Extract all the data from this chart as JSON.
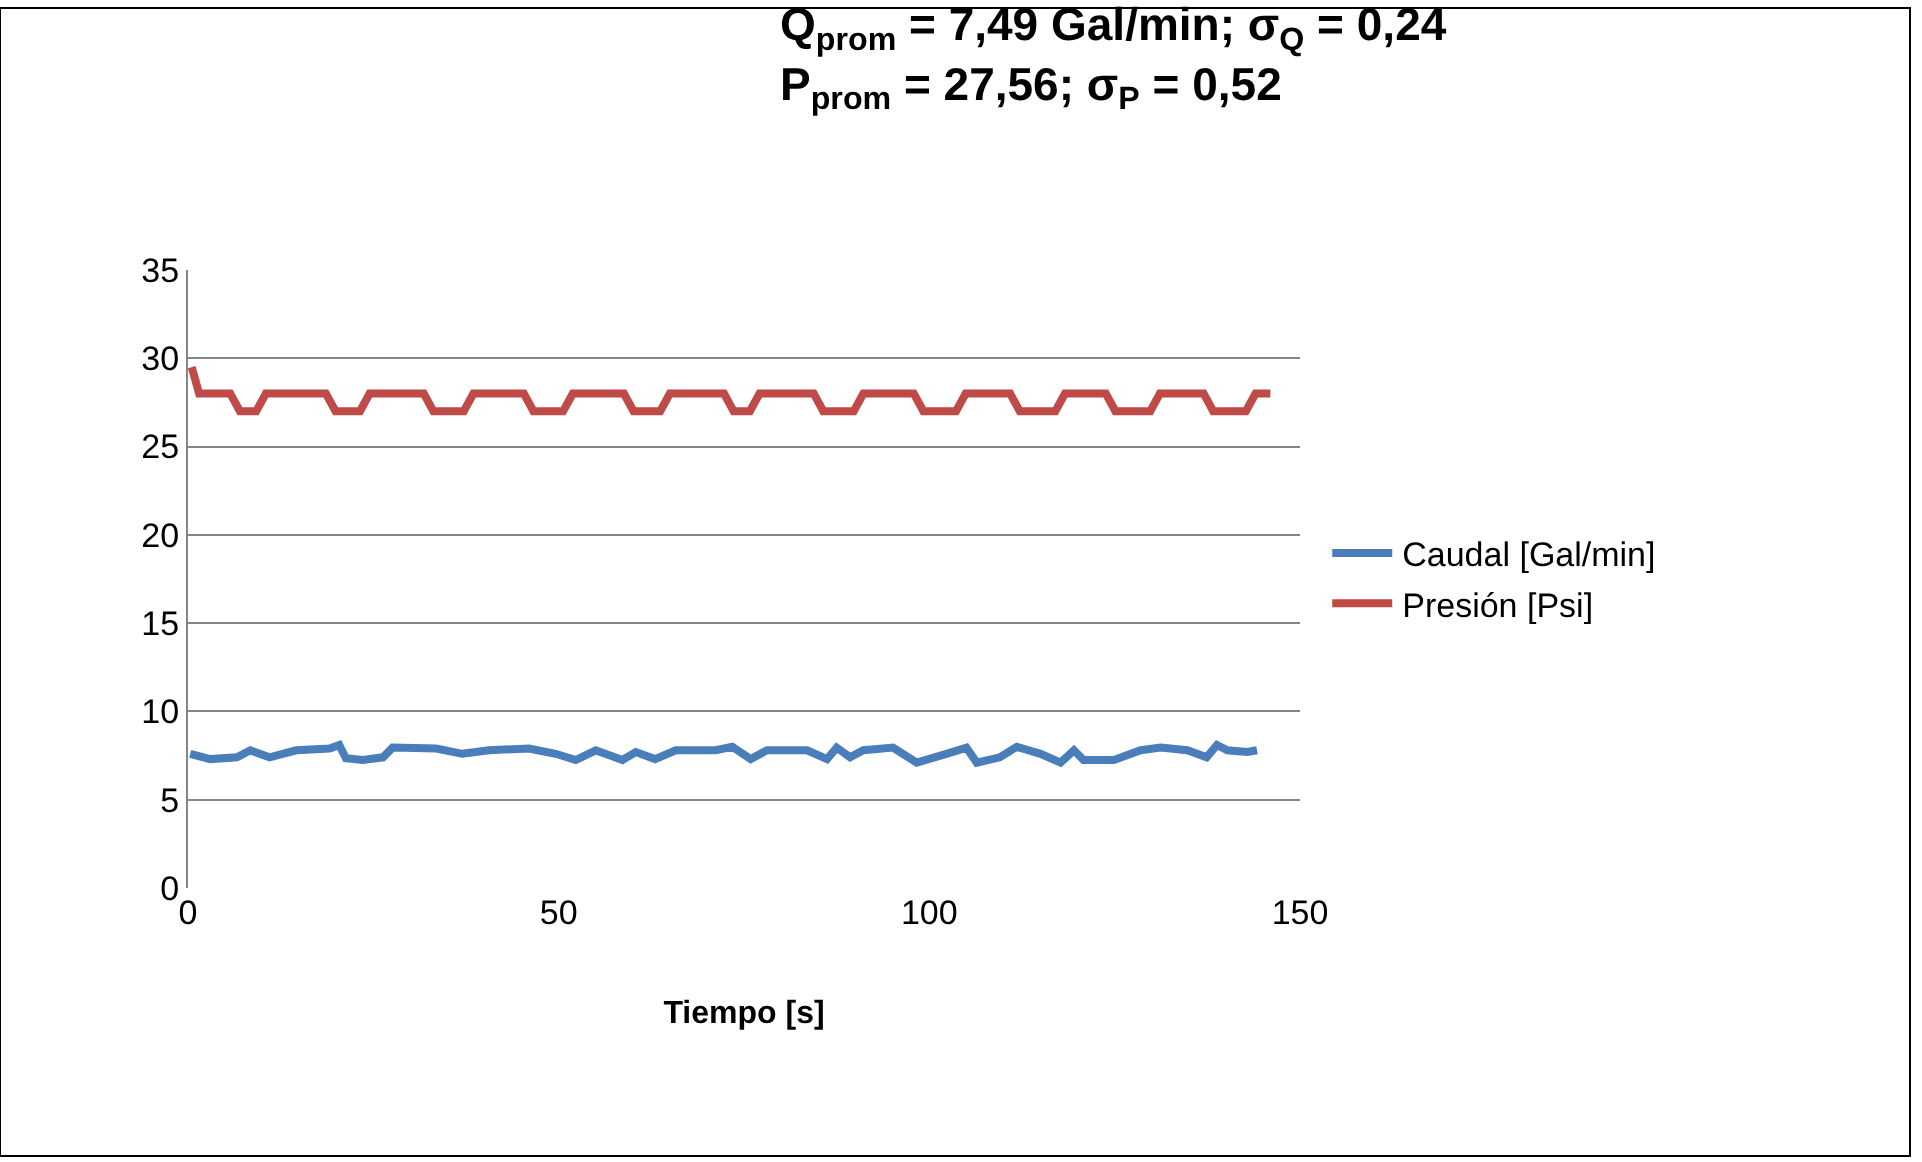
{
  "chart_data": {
    "type": "line",
    "title": "Q$_{prom}$ = 7,49 Gal/min; σ$_{Q}$ = 0,24\nP$_{prom}$ = 27,56; σ$_{P}$ = 0,52",
    "xlabel": "Tiempo [s]",
    "xlim": [
      0,
      150
    ],
    "xticks": [
      0,
      50,
      100,
      150
    ],
    "ylim": [
      0,
      35
    ],
    "yticks": [
      0,
      5,
      10,
      15,
      20,
      25,
      30,
      35
    ],
    "grid": "y",
    "legend": "right",
    "marker": "none",
    "line_style": "solid",
    "series": [
      {
        "name": "Caudal [Gal/min]",
        "color": "#4a7ebb",
        "x": [
          0.3,
          3,
          6.6,
          8.4,
          11,
          14.6,
          19.1,
          20.4,
          21.3,
          23.6,
          26.3,
          27.6,
          33.5,
          37,
          40.6,
          46,
          49.6,
          52.3,
          55,
          58.6,
          60.4,
          63,
          65.8,
          71.2,
          73.4,
          75.9,
          78.1,
          83.5,
          86.2,
          87.5,
          89.3,
          91.1,
          95.1,
          98.3,
          102.3,
          105,
          106.4,
          109.5,
          111.8,
          115,
          117.7,
          119.5,
          120.8,
          124.9,
          128.5,
          131.2,
          134.8,
          137.4,
          138.8,
          140.2,
          142.9,
          144.2
        ],
        "values": [
          7.6,
          7.3,
          7.4,
          7.8,
          7.4,
          7.8,
          7.9,
          8.1,
          7.35,
          7.25,
          7.4,
          7.95,
          7.9,
          7.6,
          7.8,
          7.9,
          7.6,
          7.25,
          7.8,
          7.25,
          7.7,
          7.3,
          7.8,
          7.8,
          8.0,
          7.3,
          7.8,
          7.8,
          7.3,
          7.95,
          7.4,
          7.8,
          7.95,
          7.1,
          7.6,
          7.95,
          7.1,
          7.4,
          8.0,
          7.6,
          7.1,
          7.8,
          7.25,
          7.25,
          7.8,
          7.95,
          7.8,
          7.4,
          8.1,
          7.8,
          7.7,
          7.8
        ]
      },
      {
        "name": "Presión [Psi]",
        "color": "#be4b48",
        "x": [
          0.5,
          1.5,
          5.7,
          7,
          9.2,
          10.5,
          18.6,
          19.9,
          23.2,
          24.5,
          31.8,
          33.1,
          37.2,
          38.5,
          45.3,
          46.6,
          50.6,
          51.9,
          58.8,
          60.1,
          63.7,
          65,
          72.3,
          73.6,
          75.8,
          77.1,
          84.4,
          85.7,
          89.8,
          91.1,
          97.9,
          99.2,
          103.6,
          104.9,
          110.9,
          112.2,
          117,
          118.3,
          123.8,
          125.1,
          129.8,
          131.1,
          137,
          138.3,
          142.7,
          144,
          146
        ],
        "values": [
          29.5,
          28,
          28,
          27,
          27,
          28,
          28,
          27,
          27,
          28,
          28,
          27,
          27,
          28,
          28,
          27,
          27,
          28,
          28,
          27,
          27,
          28,
          28,
          27,
          27,
          28,
          28,
          27,
          27,
          28,
          28,
          27,
          27,
          28,
          28,
          27,
          27,
          28,
          28,
          27,
          27,
          28,
          28,
          27,
          27,
          28,
          28
        ]
      }
    ]
  }
}
